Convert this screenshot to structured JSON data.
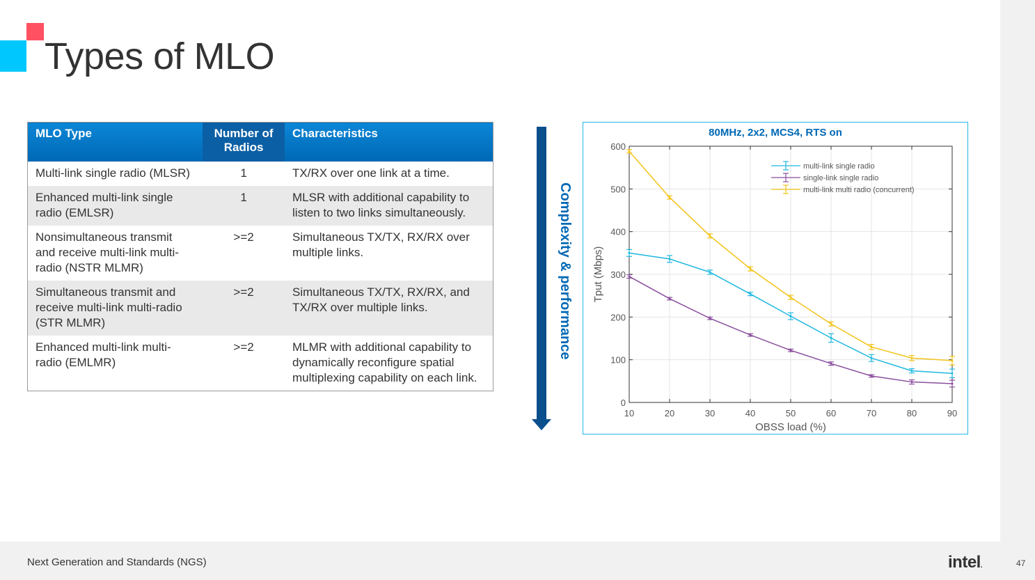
{
  "slide": {
    "title": "Types of MLO",
    "footer": "Next Generation and Standards (NGS)",
    "logo": "intel",
    "logo_dot": ".",
    "page_number": "47"
  },
  "table": {
    "headers": [
      "MLO Type",
      "Number of Radios",
      "Characteristics"
    ],
    "rows": [
      {
        "type": "Multi-link single radio (MLSR)",
        "radios": "1",
        "characteristics": "TX/RX over one link at a time."
      },
      {
        "type": "Enhanced multi-link single radio (EMLSR)",
        "radios": "1",
        "characteristics": "MLSR with additional capability to listen to two links simultaneously."
      },
      {
        "type": "Nonsimultaneous transmit and receive multi-link multi-radio (NSTR MLMR)",
        "radios": ">=2",
        "characteristics": "Simultaneous TX/TX, RX/RX over multiple links."
      },
      {
        "type": "Simultaneous transmit and receive multi-link multi-radio (STR MLMR)",
        "radios": ">=2",
        "characteristics": "Simultaneous TX/TX, RX/RX, and TX/RX over multiple links."
      },
      {
        "type": "Enhanced multi-link multi-radio (EMLMR)",
        "radios": ">=2",
        "characteristics": "MLMR with additional capability to dynamically reconfigure spatial multiplexing capability on each link."
      }
    ]
  },
  "arrow": {
    "label": "Complexity & performance",
    "color": "#0068b5"
  },
  "chart_data": {
    "type": "line",
    "title": "80MHz, 2x2, MCS4, RTS on",
    "xlabel": "OBSS load (%)",
    "ylabel": "Tput (Mbps)",
    "x": [
      10,
      20,
      30,
      40,
      50,
      60,
      70,
      80,
      90
    ],
    "xlim": [
      10,
      90
    ],
    "ylim": [
      0,
      600
    ],
    "xticks": [
      "10",
      "20",
      "30",
      "40",
      "50",
      "60",
      "70",
      "80",
      "90"
    ],
    "yticks": [
      "0",
      "100",
      "200",
      "300",
      "400",
      "500",
      "600"
    ],
    "grid": true,
    "legend_position": "top-right",
    "series": [
      {
        "name": "multi-link single radio",
        "color": "#1fb8e0",
        "values": [
          350,
          336,
          305,
          254,
          202,
          151,
          104,
          74,
          68
        ],
        "errors": [
          8,
          8,
          5,
          4,
          8,
          10,
          8,
          5,
          10
        ]
      },
      {
        "name": "single-link single radio",
        "color": "#8a4e9e",
        "values": [
          295,
          243,
          197,
          158,
          122,
          91,
          62,
          48,
          44
        ],
        "errors": [
          4,
          3,
          3,
          3,
          3,
          4,
          3,
          5,
          8
        ]
      },
      {
        "name": "multi-link multi radio (concurrent)",
        "color": "#f2c318",
        "values": [
          588,
          480,
          390,
          313,
          246,
          184,
          130,
          104,
          98
        ],
        "errors": [
          4,
          4,
          5,
          5,
          5,
          5,
          6,
          6,
          10
        ]
      }
    ]
  }
}
